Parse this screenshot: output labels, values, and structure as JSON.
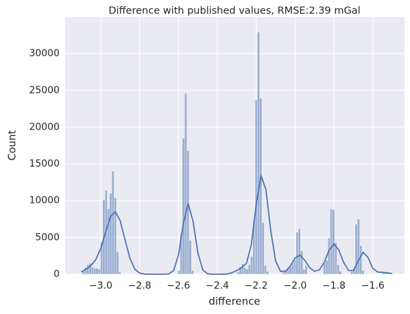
{
  "chart_data": {
    "type": "histogram",
    "title": "Difference with published values, RMSE:2.39 mGal",
    "xlabel": "difference",
    "ylabel": "Count",
    "color": "#4c72b0",
    "background": "#eaeaf2",
    "grid": true,
    "bins": [
      -3.095,
      -3.0833,
      -3.0716,
      -3.0599,
      -3.0482,
      -3.0365,
      -3.0248,
      -3.0131,
      -3.0014,
      -2.9897,
      -2.978,
      -2.9663,
      -2.9546,
      -2.9429,
      -2.9312,
      -2.9195,
      -2.9078,
      -2.8961,
      -2.8844,
      -2.8727,
      -2.861,
      -2.8493,
      -2.8376,
      -2.8259,
      -2.8142,
      -2.8025,
      -2.7908,
      -2.7791,
      -2.7674,
      -2.7557,
      -2.744,
      -2.7323,
      -2.7206,
      -2.7089,
      -2.6972,
      -2.6855,
      -2.6738,
      -2.6621,
      -2.6504,
      -2.6387,
      -2.627,
      -2.6153,
      -2.6036,
      -2.5919,
      -2.5802,
      -2.5685,
      -2.5568,
      -2.5451,
      -2.5334,
      -2.5217,
      -2.51,
      -2.4983,
      -2.4866,
      -2.4749,
      -2.4632,
      -2.4515,
      -2.4398,
      -2.4281,
      -2.4164,
      -2.4047,
      -2.393,
      -2.3813,
      -2.3696,
      -2.3579,
      -2.3462,
      -2.3345,
      -2.3228,
      -2.3111,
      -2.2994,
      -2.2877,
      -2.276,
      -2.2643,
      -2.2526,
      -2.2409,
      -2.2292,
      -2.2175,
      -2.2058,
      -2.1941,
      -2.1824,
      -2.1707,
      -2.159,
      -2.1473,
      -2.1356,
      -2.1239,
      -2.1122,
      -2.1005,
      -2.0888,
      -2.0771,
      -2.0654,
      -2.0537,
      -2.042,
      -2.0303,
      -2.0186,
      -2.0069,
      -1.9952,
      -1.9835,
      -1.9718,
      -1.9601,
      -1.9484,
      -1.9367,
      -1.925,
      -1.9133,
      -1.9016,
      -1.8899,
      -1.8782,
      -1.8665,
      -1.8548,
      -1.8431,
      -1.8314,
      -1.8197,
      -1.808,
      -1.7963,
      -1.7846,
      -1.7729,
      -1.7612,
      -1.7495,
      -1.7378,
      -1.7261,
      -1.7144,
      -1.7027,
      -1.691,
      -1.6793,
      -1.6676,
      -1.6559,
      -1.6442,
      -1.6325,
      -1.6208,
      -1.6091,
      -1.5974,
      -1.5857,
      -1.574,
      -1.5623,
      -1.5506,
      -1.5389,
      -1.5272,
      -1.5155
    ],
    "counts": [
      400,
      900,
      1300,
      1500,
      1000,
      800,
      800,
      700,
      4300,
      10100,
      11400,
      8900,
      11000,
      14000,
      10400,
      3100,
      300,
      0,
      0,
      0,
      0,
      0,
      0,
      0,
      0,
      0,
      0,
      0,
      0,
      0,
      0,
      0,
      0,
      0,
      0,
      0,
      0,
      0,
      0,
      0,
      0,
      0,
      500,
      5500,
      18500,
      24600,
      16800,
      4600,
      500,
      0,
      0,
      0,
      0,
      0,
      0,
      0,
      0,
      0,
      0,
      0,
      0,
      0,
      0,
      0,
      0,
      0,
      0,
      0,
      300,
      1000,
      1400,
      900,
      700,
      1300,
      2400,
      7300,
      23700,
      32900,
      23900,
      7000,
      1200,
      400,
      0,
      0,
      0,
      0,
      0,
      0,
      300,
      500,
      800,
      1000,
      1500,
      2000,
      5700,
      6200,
      3200,
      700,
      1200,
      0,
      0,
      0,
      0,
      0,
      0,
      0,
      1500,
      1900,
      4900,
      8900,
      8800,
      4300,
      1300,
      400,
      0,
      0,
      0,
      0,
      400,
      800,
      6800,
      7500,
      3900,
      500,
      0,
      0,
      0,
      0,
      0,
      0,
      0,
      0,
      300,
      300,
      200
    ],
    "kde": {
      "x": [
        -3.1,
        -3.075,
        -3.05,
        -3.025,
        -3.0,
        -2.975,
        -2.95,
        -2.925,
        -2.9,
        -2.875,
        -2.85,
        -2.825,
        -2.8,
        -2.775,
        -2.75,
        -2.725,
        -2.7,
        -2.675,
        -2.65,
        -2.625,
        -2.6,
        -2.575,
        -2.55,
        -2.525,
        -2.5,
        -2.475,
        -2.45,
        -2.425,
        -2.4,
        -2.375,
        -2.35,
        -2.325,
        -2.3,
        -2.275,
        -2.25,
        -2.225,
        -2.2,
        -2.175,
        -2.15,
        -2.125,
        -2.1,
        -2.075,
        -2.05,
        -2.025,
        -2.0,
        -1.975,
        -1.95,
        -1.925,
        -1.9,
        -1.875,
        -1.85,
        -1.825,
        -1.8,
        -1.775,
        -1.75,
        -1.725,
        -1.7,
        -1.675,
        -1.65,
        -1.625,
        -1.6,
        -1.575,
        -1.55,
        -1.525,
        -1.5
      ],
      "values": [
        300,
        700,
        1200,
        2000,
        3500,
        5700,
        7800,
        8500,
        7300,
        4700,
        2200,
        700,
        150,
        20,
        0,
        0,
        0,
        0,
        50,
        500,
        2600,
        6900,
        9600,
        7200,
        2900,
        600,
        60,
        0,
        0,
        0,
        30,
        200,
        500,
        900,
        1500,
        4000,
        9500,
        13400,
        11500,
        5900,
        1800,
        400,
        400,
        1100,
        2200,
        2600,
        1900,
        900,
        400,
        600,
        1600,
        3300,
        4100,
        3300,
        1600,
        500,
        500,
        1800,
        3000,
        2300,
        800,
        300,
        250,
        200,
        80
      ],
      "color": "#4c72b0"
    },
    "xlim": [
      -3.183,
      -1.437
    ],
    "xticks": [
      {
        "value": -3.0,
        "label": "−3.0"
      },
      {
        "value": -2.8,
        "label": "−2.8"
      },
      {
        "value": -2.6,
        "label": "−2.6"
      },
      {
        "value": -2.4,
        "label": "−2.4"
      },
      {
        "value": -2.2,
        "label": "−2.2"
      },
      {
        "value": -2.0,
        "label": "−2.0"
      },
      {
        "value": -1.8,
        "label": "−1.8"
      },
      {
        "value": -1.6,
        "label": "−1.6"
      }
    ],
    "ylim": [
      0,
      34950
    ],
    "yticks": [
      0,
      5000,
      10000,
      15000,
      20000,
      25000,
      30000
    ]
  }
}
